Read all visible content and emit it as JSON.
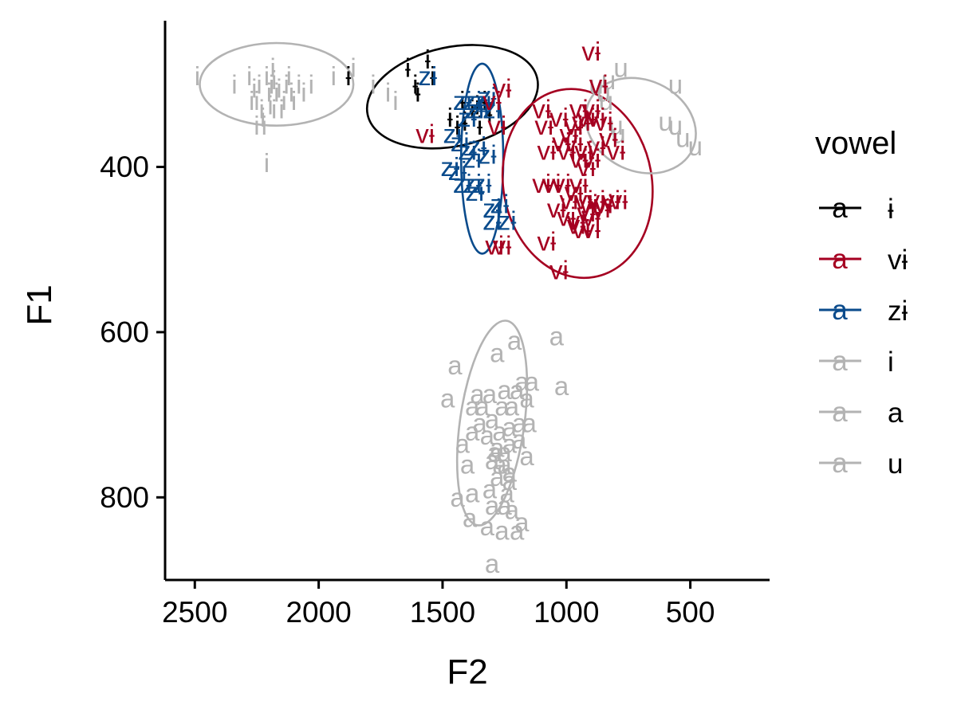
{
  "chart_data": {
    "type": "scatter",
    "xlabel": "F2",
    "ylabel": "F1",
    "x_reversed": true,
    "y_reversed": true,
    "xlim": [
      2620,
      180
    ],
    "ylim": [
      223,
      900
    ],
    "x_ticks": [
      2500,
      2000,
      1500,
      1000,
      500
    ],
    "y_ticks": [
      400,
      600,
      800
    ],
    "grid": false,
    "legend_position": "right",
    "legend": {
      "title": "vowel",
      "entries": [
        {
          "key_text": "a",
          "label": "ɨ",
          "color": "#000000"
        },
        {
          "key_text": "a",
          "label": "vɨ",
          "color": "#a50021"
        },
        {
          "key_text": "a",
          "label": "zɨ",
          "color": "#0a4b8c"
        },
        {
          "key_text": "a",
          "label": "i",
          "color": "#b3b3b3"
        },
        {
          "key_text": "a",
          "label": "a",
          "color": "#b3b3b3"
        },
        {
          "key_text": "a",
          "label": "u",
          "color": "#b3b3b3"
        }
      ]
    },
    "series": [
      {
        "label": "i",
        "color": "#b3b3b3",
        "ellipse": {
          "cx": 2170,
          "cy": 300,
          "rx_f2": 310,
          "ry_f1": 50,
          "angle_deg": 0
        },
        "points": [
          [
            2490,
            290
          ],
          [
            2340,
            300
          ],
          [
            2280,
            290
          ],
          [
            2260,
            305
          ],
          [
            2250,
            320
          ],
          [
            2240,
            300
          ],
          [
            2230,
            330
          ],
          [
            2225,
            340
          ],
          [
            2220,
            350
          ],
          [
            2210,
            290
          ],
          [
            2200,
            310
          ],
          [
            2195,
            325
          ],
          [
            2190,
            300
          ],
          [
            2185,
            280
          ],
          [
            2180,
            295
          ],
          [
            2170,
            310
          ],
          [
            2160,
            305
          ],
          [
            2150,
            330
          ],
          [
            2140,
            320
          ],
          [
            2130,
            300
          ],
          [
            2120,
            290
          ],
          [
            2110,
            310
          ],
          [
            2100,
            320
          ],
          [
            2080,
            300
          ],
          [
            2060,
            310
          ],
          [
            2030,
            300
          ],
          [
            1940,
            290
          ],
          [
            1860,
            280
          ],
          [
            1780,
            300
          ],
          [
            1720,
            310
          ],
          [
            1690,
            320
          ],
          [
            2210,
            395
          ],
          [
            2250,
            350
          ],
          [
            2270,
            320
          ],
          [
            2180,
            330
          ]
        ]
      },
      {
        "label": "ɨ",
        "color": "#000000",
        "ellipse": {
          "cx": 1460,
          "cy": 315,
          "rx_f2": 350,
          "ry_f1": 60,
          "angle_deg": -12
        },
        "points": [
          [
            1880,
            290
          ],
          [
            1640,
            280
          ],
          [
            1610,
            300
          ],
          [
            1600,
            310
          ],
          [
            1560,
            270
          ],
          [
            1540,
            290
          ],
          [
            1470,
            340
          ],
          [
            1440,
            350
          ],
          [
            1420,
            320
          ],
          [
            1410,
            345
          ],
          [
            1380,
            330
          ],
          [
            1360,
            325
          ],
          [
            1350,
            350
          ],
          [
            1330,
            320
          ],
          [
            1310,
            335
          ]
        ]
      },
      {
        "label": "zɨ",
        "color": "#0a4b8c",
        "ellipse": {
          "cx": 1340,
          "cy": 390,
          "rx_f2": 85,
          "ry_f1": 115,
          "angle_deg": 0
        },
        "points": [
          [
            1560,
            290
          ],
          [
            1420,
            320
          ],
          [
            1400,
            340
          ],
          [
            1380,
            320
          ],
          [
            1370,
            330
          ],
          [
            1350,
            330
          ],
          [
            1340,
            320
          ],
          [
            1320,
            315
          ],
          [
            1300,
            330
          ],
          [
            1460,
            360
          ],
          [
            1430,
            370
          ],
          [
            1400,
            380
          ],
          [
            1380,
            390
          ],
          [
            1360,
            375
          ],
          [
            1320,
            385
          ],
          [
            1470,
            400
          ],
          [
            1440,
            405
          ],
          [
            1420,
            420
          ],
          [
            1380,
            420
          ],
          [
            1370,
            430
          ],
          [
            1340,
            420
          ],
          [
            1300,
            450
          ],
          [
            1270,
            445
          ],
          [
            1300,
            465
          ],
          [
            1240,
            465
          ]
        ]
      },
      {
        "label": "vɨ",
        "color": "#a50021",
        "ellipse": {
          "cx": 955,
          "cy": 420,
          "rx_f2": 300,
          "ry_f1": 115,
          "angle_deg": -10
        },
        "points": [
          [
            900,
            260
          ],
          [
            870,
            300
          ],
          [
            1260,
            305
          ],
          [
            1300,
            320
          ],
          [
            1280,
            350
          ],
          [
            1570,
            360
          ],
          [
            1100,
            330
          ],
          [
            1090,
            350
          ],
          [
            1030,
            340
          ],
          [
            990,
            360
          ],
          [
            970,
            350
          ],
          [
            950,
            330
          ],
          [
            940,
            345
          ],
          [
            920,
            340
          ],
          [
            900,
            330
          ],
          [
            880,
            340
          ],
          [
            850,
            345
          ],
          [
            830,
            365
          ],
          [
            1080,
            380
          ],
          [
            1020,
            370
          ],
          [
            1000,
            380
          ],
          [
            970,
            370
          ],
          [
            950,
            390
          ],
          [
            930,
            380
          ],
          [
            920,
            400
          ],
          [
            900,
            390
          ],
          [
            880,
            375
          ],
          [
            800,
            380
          ],
          [
            1100,
            420
          ],
          [
            1060,
            420
          ],
          [
            1020,
            420
          ],
          [
            990,
            440
          ],
          [
            970,
            430
          ],
          [
            950,
            420
          ],
          [
            930,
            440
          ],
          [
            910,
            445
          ],
          [
            900,
            460
          ],
          [
            880,
            440
          ],
          [
            860,
            450
          ],
          [
            850,
            445
          ],
          [
            820,
            440
          ],
          [
            790,
            440
          ],
          [
            1040,
            450
          ],
          [
            1000,
            460
          ],
          [
            960,
            465
          ],
          [
            940,
            475
          ],
          [
            900,
            475
          ],
          [
            1080,
            490
          ],
          [
            1030,
            525
          ],
          [
            1260,
            495
          ],
          [
            1290,
            495
          ],
          [
            960,
            470
          ],
          [
            920,
            455
          ]
        ]
      },
      {
        "label": "u",
        "color": "#b3b3b3",
        "ellipse": {
          "cx": 700,
          "cy": 350,
          "rx_f2": 230,
          "ry_f1": 55,
          "angle_deg": 25
        },
        "points": [
          [
            880,
            300
          ],
          [
            830,
            295
          ],
          [
            780,
            280
          ],
          [
            850,
            310
          ],
          [
            840,
            320
          ],
          [
            800,
            350
          ],
          [
            790,
            360
          ],
          [
            560,
            300
          ],
          [
            560,
            350
          ],
          [
            600,
            345
          ],
          [
            530,
            365
          ],
          [
            480,
            375
          ]
        ]
      },
      {
        "label": "a",
        "color": "#b3b3b3",
        "ellipse": {
          "cx": 1300,
          "cy": 710,
          "rx_f2": 130,
          "ry_f1": 125,
          "angle_deg": 8
        },
        "points": [
          [
            1210,
            610
          ],
          [
            1040,
            605
          ],
          [
            1280,
            625
          ],
          [
            1450,
            640
          ],
          [
            1250,
            670
          ],
          [
            1310,
            675
          ],
          [
            1360,
            675
          ],
          [
            1140,
            660
          ],
          [
            1180,
            660
          ],
          [
            1020,
            665
          ],
          [
            1480,
            680
          ],
          [
            1380,
            690
          ],
          [
            1340,
            690
          ],
          [
            1260,
            690
          ],
          [
            1220,
            690
          ],
          [
            1200,
            670
          ],
          [
            1160,
            680
          ],
          [
            1350,
            710
          ],
          [
            1300,
            705
          ],
          [
            1270,
            720
          ],
          [
            1230,
            715
          ],
          [
            1190,
            710
          ],
          [
            1150,
            710
          ],
          [
            1420,
            735
          ],
          [
            1380,
            720
          ],
          [
            1320,
            725
          ],
          [
            1280,
            740
          ],
          [
            1230,
            735
          ],
          [
            1190,
            730
          ],
          [
            1160,
            750
          ],
          [
            1400,
            760
          ],
          [
            1300,
            755
          ],
          [
            1250,
            760
          ],
          [
            1230,
            780
          ],
          [
            1280,
            775
          ],
          [
            1310,
            790
          ],
          [
            1440,
            800
          ],
          [
            1380,
            795
          ],
          [
            1300,
            810
          ],
          [
            1250,
            810
          ],
          [
            1220,
            815
          ],
          [
            1180,
            830
          ],
          [
            1320,
            835
          ],
          [
            1260,
            840
          ],
          [
            1200,
            840
          ],
          [
            1290,
            745
          ],
          [
            1250,
            745
          ],
          [
            1240,
            795
          ],
          [
            1390,
            825
          ],
          [
            1300,
            880
          ],
          [
            1230,
            770
          ],
          [
            1270,
            760
          ]
        ]
      }
    ]
  }
}
